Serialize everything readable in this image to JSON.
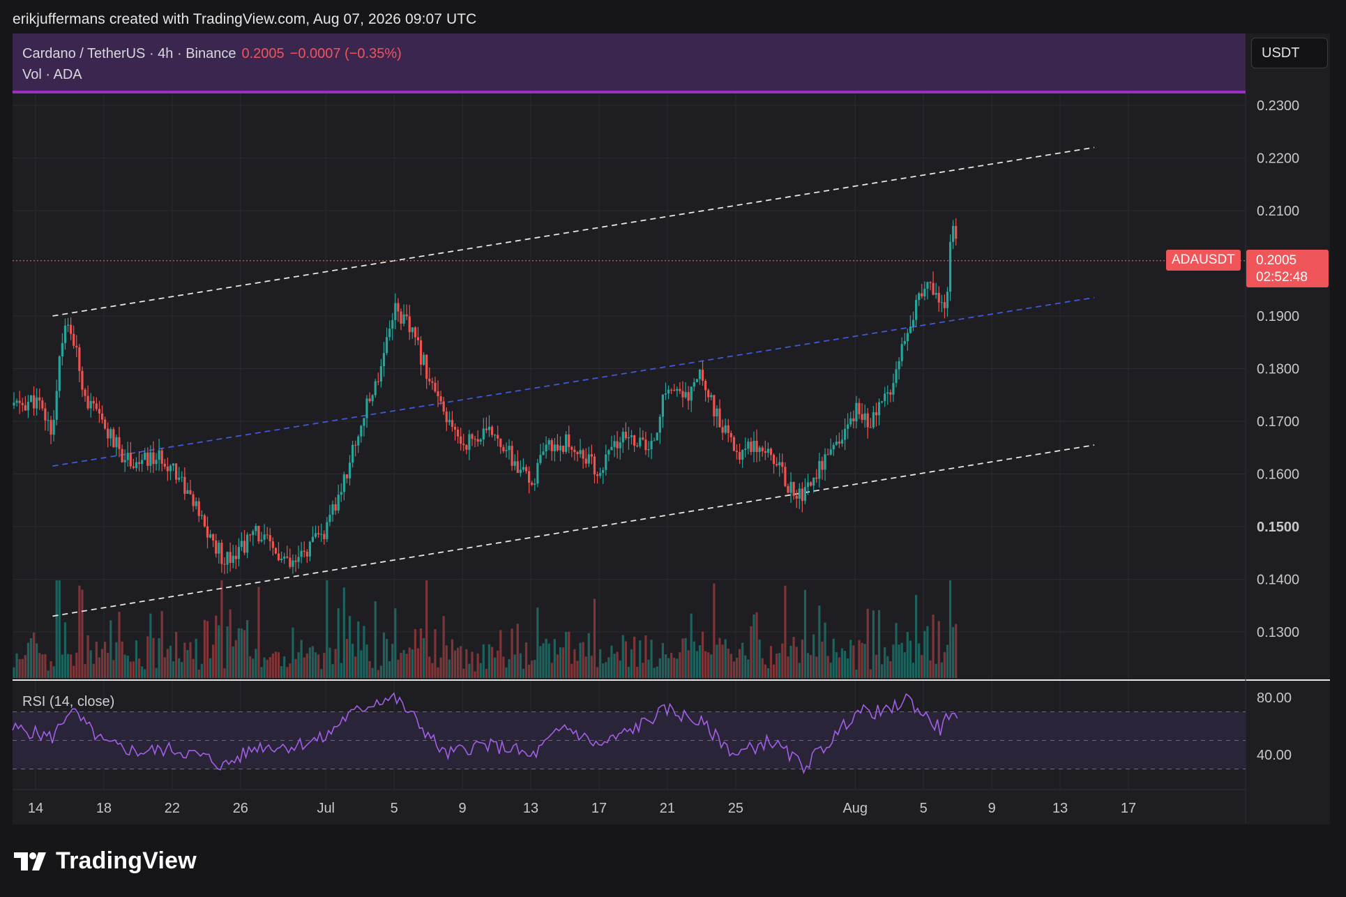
{
  "credit": "erikjuffermans created with TradingView.com, Aug 07, 2026 09:07 UTC",
  "header": {
    "symbol": "Cardano / TetherUS · 4h · Binance",
    "price": "0.2005",
    "change": "−0.0007 (−0.35%)",
    "volume_label": "Vol · ADA"
  },
  "currency": "USDT",
  "price_tag": {
    "symbol": "ADAUSDT",
    "price": "0.2005",
    "countdown": "02:52:48"
  },
  "rsi_label": "RSI (14, close)",
  "brand": "TradingView",
  "colors": {
    "up": "#26a69a",
    "down": "#ef5350",
    "rsi": "#a25fe8",
    "channel": "#e8e8e8",
    "midline": "#3d5bd9",
    "last_price": "#f0555a"
  },
  "chart_data": [
    {
      "type": "candlestick",
      "title": "",
      "x_range": [
        "2026-06-13",
        "2026-08-19"
      ],
      "y_range": [
        0.122,
        0.234
      ],
      "y_ticks": [
        "0.2300",
        "0.2200",
        "0.2100",
        "0.1900",
        "0.1800",
        "0.1700",
        "0.1600",
        "0.1500",
        "0.1400",
        "0.1300"
      ],
      "y_tick_values": [
        0.23,
        0.22,
        0.21,
        0.19,
        0.18,
        0.17,
        0.16,
        0.15,
        0.14,
        0.13
      ],
      "x_ticks": [
        "14",
        "18",
        "22",
        "26",
        "Jul",
        "5",
        "9",
        "13",
        "17",
        "21",
        "25",
        "Aug",
        "5",
        "9",
        "13",
        "17"
      ],
      "x_tick_dates": [
        "2026-06-14",
        "2026-06-18",
        "2026-06-22",
        "2026-06-26",
        "2026-07-01",
        "2026-07-05",
        "2026-07-09",
        "2026-07-13",
        "2026-07-17",
        "2026-07-21",
        "2026-07-25",
        "2026-08-01",
        "2026-08-05",
        "2026-08-09",
        "2026-08-13",
        "2026-08-17"
      ],
      "last_price": 0.2005,
      "price_path": [
        [
          "2026-06-13",
          0.173
        ],
        [
          "2026-06-14",
          0.174
        ],
        [
          "2026-06-15",
          0.168
        ],
        [
          "2026-06-15T12:00",
          0.186
        ],
        [
          "2026-06-16",
          0.188
        ],
        [
          "2026-06-17",
          0.174
        ],
        [
          "2026-06-18",
          0.169
        ],
        [
          "2026-06-19",
          0.164
        ],
        [
          "2026-06-20",
          0.162
        ],
        [
          "2026-06-21",
          0.163
        ],
        [
          "2026-06-22",
          0.162
        ],
        [
          "2026-06-23",
          0.156
        ],
        [
          "2026-06-24",
          0.149
        ],
        [
          "2026-06-25",
          0.144
        ],
        [
          "2026-06-26",
          0.146
        ],
        [
          "2026-06-27",
          0.149
        ],
        [
          "2026-06-28",
          0.145
        ],
        [
          "2026-06-29",
          0.142
        ],
        [
          "2026-06-30",
          0.146
        ],
        [
          "2026-07-01",
          0.149
        ],
        [
          "2026-07-02",
          0.158
        ],
        [
          "2026-07-03",
          0.169
        ],
        [
          "2026-07-04",
          0.178
        ],
        [
          "2026-07-05",
          0.192
        ],
        [
          "2026-07-06",
          0.187
        ],
        [
          "2026-07-07",
          0.179
        ],
        [
          "2026-07-08",
          0.17
        ],
        [
          "2026-07-09",
          0.166
        ],
        [
          "2026-07-10",
          0.167
        ],
        [
          "2026-07-11",
          0.168
        ],
        [
          "2026-07-12",
          0.162
        ],
        [
          "2026-07-13",
          0.158
        ],
        [
          "2026-07-14",
          0.165
        ],
        [
          "2026-07-15",
          0.166
        ],
        [
          "2026-07-16",
          0.164
        ],
        [
          "2026-07-17",
          0.16
        ],
        [
          "2026-07-18",
          0.166
        ],
        [
          "2026-07-19",
          0.167
        ],
        [
          "2026-07-20",
          0.164
        ],
        [
          "2026-07-21",
          0.177
        ],
        [
          "2026-07-22",
          0.174
        ],
        [
          "2026-07-23",
          0.179
        ],
        [
          "2026-07-24",
          0.17
        ],
        [
          "2026-07-25",
          0.164
        ],
        [
          "2026-07-26",
          0.166
        ],
        [
          "2026-07-27",
          0.165
        ],
        [
          "2026-07-28",
          0.158
        ],
        [
          "2026-07-29",
          0.156
        ],
        [
          "2026-07-30",
          0.162
        ],
        [
          "2026-07-31",
          0.165
        ],
        [
          "2026-08-01",
          0.172
        ],
        [
          "2026-08-02",
          0.17
        ],
        [
          "2026-08-03",
          0.176
        ],
        [
          "2026-08-04",
          0.188
        ],
        [
          "2026-08-05",
          0.195
        ],
        [
          "2026-08-06",
          0.194
        ],
        [
          "2026-08-06T08:00",
          0.19
        ],
        [
          "2026-08-06T16:00",
          0.21
        ],
        [
          "2026-08-07",
          0.2005
        ]
      ],
      "channel_lines": [
        {
          "name": "upper",
          "from": [
            "2026-06-15",
            0.19
          ],
          "to": [
            "2026-08-15",
            0.222
          ]
        },
        {
          "name": "middle",
          "from": [
            "2026-06-15",
            0.1615
          ],
          "to": [
            "2026-08-15",
            0.1935
          ]
        },
        {
          "name": "lower",
          "from": [
            "2026-06-15",
            0.133
          ],
          "to": [
            "2026-08-15",
            0.1655
          ]
        }
      ]
    },
    {
      "type": "bar",
      "title": "",
      "note": "volume histogram"
    },
    {
      "type": "line",
      "title": "",
      "y_range": [
        20,
        90
      ],
      "y_ticks": [
        "80.00",
        "40.00"
      ],
      "y_tick_values": [
        80,
        40
      ],
      "band": [
        30,
        70
      ],
      "rsi_path": [
        [
          "2026-06-13",
          58
        ],
        [
          "2026-06-15",
          52
        ],
        [
          "2026-06-16",
          72
        ],
        [
          "2026-06-18",
          48
        ],
        [
          "2026-06-20",
          42
        ],
        [
          "2026-06-22",
          44
        ],
        [
          "2026-06-24",
          38
        ],
        [
          "2026-06-25",
          32
        ],
        [
          "2026-06-27",
          46
        ],
        [
          "2026-06-29",
          46
        ],
        [
          "2026-07-01",
          52
        ],
        [
          "2026-07-02",
          65
        ],
        [
          "2026-07-04",
          78
        ],
        [
          "2026-07-05",
          80
        ],
        [
          "2026-07-06",
          68
        ],
        [
          "2026-07-08",
          40
        ],
        [
          "2026-07-10",
          47
        ],
        [
          "2026-07-12",
          44
        ],
        [
          "2026-07-13",
          38
        ],
        [
          "2026-07-15",
          60
        ],
        [
          "2026-07-17",
          46
        ],
        [
          "2026-07-19",
          58
        ],
        [
          "2026-07-21",
          72
        ],
        [
          "2026-07-23",
          62
        ],
        [
          "2026-07-25",
          40
        ],
        [
          "2026-07-27",
          50
        ],
        [
          "2026-07-29",
          32
        ],
        [
          "2026-07-31",
          55
        ],
        [
          "2026-08-01",
          70
        ],
        [
          "2026-08-03",
          70
        ],
        [
          "2026-08-04",
          80
        ],
        [
          "2026-08-05",
          68
        ],
        [
          "2026-08-06",
          58
        ],
        [
          "2026-08-06T16:00",
          72
        ],
        [
          "2026-08-07",
          60
        ]
      ]
    }
  ]
}
